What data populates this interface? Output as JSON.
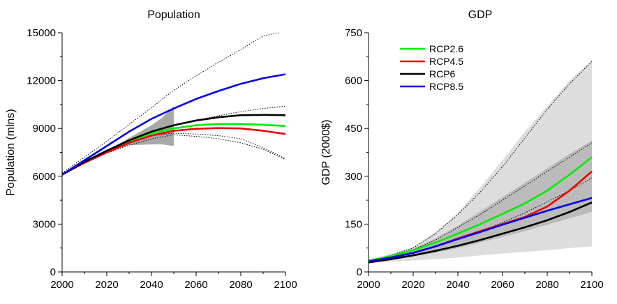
{
  "chart_data": [
    {
      "type": "line",
      "title": "Population",
      "xlabel": "",
      "ylabel": "Population (mlns)",
      "xlim": [
        2000,
        2100
      ],
      "ylim": [
        0,
        15000
      ],
      "xticks": [
        "2000",
        "2020",
        "2040",
        "2060",
        "2080",
        "2100"
      ],
      "yticks": [
        "0",
        "3000",
        "6000",
        "9000",
        "12000",
        "15000"
      ],
      "grid": false,
      "legend": null,
      "series": [
        {
          "name": "RCP2.6",
          "color": "#00ee00",
          "x": [
            2000,
            2010,
            2020,
            2030,
            2040,
            2050,
            2060,
            2070,
            2080,
            2090,
            2100
          ],
          "y": [
            6100,
            6900,
            7600,
            8200,
            8700,
            9000,
            9200,
            9280,
            9280,
            9230,
            9150
          ]
        },
        {
          "name": "RCP4.5",
          "color": "#ee0000",
          "x": [
            2000,
            2010,
            2020,
            2030,
            2040,
            2050,
            2060,
            2070,
            2080,
            2090,
            2100
          ],
          "y": [
            6100,
            6850,
            7500,
            8100,
            8550,
            8850,
            8980,
            9020,
            9000,
            8850,
            8650
          ]
        },
        {
          "name": "RCP6",
          "color": "#000000",
          "x": [
            2000,
            2010,
            2020,
            2030,
            2040,
            2050,
            2060,
            2070,
            2080,
            2090,
            2100
          ],
          "y": [
            6100,
            6900,
            7600,
            8250,
            8800,
            9200,
            9500,
            9700,
            9830,
            9850,
            9830
          ]
        },
        {
          "name": "RCP8.5",
          "color": "#0000ee",
          "x": [
            2000,
            2010,
            2020,
            2030,
            2040,
            2050,
            2060,
            2070,
            2080,
            2090,
            2100
          ],
          "y": [
            6100,
            7000,
            7900,
            8800,
            9600,
            10250,
            10850,
            11350,
            11800,
            12150,
            12400
          ]
        }
      ],
      "dotted": [
        {
          "x": [
            2000,
            2010,
            2020,
            2030,
            2040,
            2050,
            2060,
            2070,
            2080,
            2090,
            2097
          ],
          "y": [
            6200,
            7200,
            8200,
            9250,
            10300,
            11400,
            12300,
            13150,
            13950,
            14800,
            15000
          ]
        },
        {
          "x": [
            2000,
            2010,
            2020,
            2030,
            2040,
            2050,
            2060,
            2070,
            2080,
            2090,
            2100
          ],
          "y": [
            6100,
            6900,
            7600,
            8250,
            8800,
            9150,
            9500,
            9800,
            10050,
            10250,
            10400
          ]
        },
        {
          "x": [
            2000,
            2010,
            2020,
            2030,
            2040,
            2050,
            2060,
            2070,
            2080,
            2090,
            2100
          ],
          "y": [
            6100,
            6850,
            7550,
            8150,
            8550,
            8700,
            8650,
            8550,
            8350,
            7800,
            7100
          ]
        },
        {
          "x": [
            2000,
            2010,
            2020,
            2030,
            2040,
            2050,
            2060,
            2070,
            2080,
            2090,
            2100
          ],
          "y": [
            6100,
            6800,
            7450,
            7950,
            8350,
            8600,
            8500,
            8350,
            8100,
            7700,
            7050
          ]
        }
      ],
      "shaded": [
        {
          "color": "#a8a8a8",
          "x": [
            2020,
            2030,
            2040,
            2045,
            2050
          ],
          "upper": [
            7600,
            8400,
            9200,
            9700,
            10400
          ],
          "lower": [
            7500,
            7950,
            8000,
            8000,
            7900
          ]
        }
      ]
    },
    {
      "type": "line",
      "title": "GDP",
      "xlabel": "",
      "ylabel": "GDP (2000$)",
      "xlim": [
        2000,
        2100
      ],
      "ylim": [
        0,
        750
      ],
      "xticks": [
        "2000",
        "2020",
        "2040",
        "2060",
        "2080",
        "2100"
      ],
      "yticks": [
        "0",
        "150",
        "300",
        "450",
        "600",
        "750"
      ],
      "grid": false,
      "legend": "top-left",
      "series": [
        {
          "name": "RCP2.6",
          "color": "#00ee00",
          "x": [
            2000,
            2010,
            2020,
            2030,
            2040,
            2050,
            2060,
            2070,
            2080,
            2090,
            2100
          ],
          "y": [
            35,
            50,
            68,
            92,
            120,
            150,
            182,
            215,
            255,
            305,
            360
          ]
        },
        {
          "name": "RCP4.5",
          "color": "#ee0000",
          "x": [
            2000,
            2010,
            2020,
            2030,
            2040,
            2050,
            2060,
            2070,
            2080,
            2090,
            2100
          ],
          "y": [
            33,
            45,
            60,
            80,
            105,
            128,
            150,
            172,
            205,
            255,
            315
          ]
        },
        {
          "name": "RCP6",
          "color": "#000000",
          "x": [
            2000,
            2010,
            2020,
            2030,
            2040,
            2050,
            2060,
            2070,
            2080,
            2090,
            2100
          ],
          "y": [
            30,
            40,
            52,
            66,
            82,
            100,
            120,
            140,
            162,
            188,
            218
          ]
        },
        {
          "name": "RCP8.5",
          "color": "#0000ee",
          "x": [
            2000,
            2010,
            2020,
            2030,
            2040,
            2050,
            2060,
            2070,
            2080,
            2090,
            2100
          ],
          "y": [
            33,
            45,
            60,
            80,
            103,
            125,
            148,
            170,
            192,
            212,
            232
          ]
        }
      ],
      "dotted": [
        {
          "x": [
            2000,
            2010,
            2020,
            2030,
            2040,
            2050,
            2060,
            2070,
            2080,
            2090,
            2100
          ],
          "y": [
            35,
            52,
            75,
            120,
            180,
            250,
            330,
            420,
            510,
            590,
            660
          ]
        },
        {
          "x": [
            2000,
            2010,
            2020,
            2030,
            2040,
            2050,
            2060,
            2070,
            2080,
            2090,
            2100
          ],
          "y": [
            35,
            50,
            70,
            100,
            140,
            180,
            225,
            270,
            315,
            360,
            405
          ]
        },
        {
          "x": [
            2000,
            2010,
            2020,
            2030,
            2040,
            2050,
            2060,
            2070,
            2080,
            2090,
            2100
          ],
          "y": [
            33,
            45,
            60,
            80,
            103,
            128,
            155,
            185,
            220,
            255,
            295
          ]
        }
      ],
      "shaded": [
        {
          "color": "#dddddd",
          "x": [
            2000,
            2010,
            2020,
            2030,
            2040,
            2050,
            2060,
            2070,
            2080,
            2090,
            2100
          ],
          "upper": [
            40,
            55,
            78,
            125,
            185,
            265,
            350,
            440,
            520,
            600,
            665
          ],
          "lower": [
            28,
            32,
            36,
            40,
            45,
            52,
            58,
            63,
            68,
            75,
            80
          ]
        },
        {
          "color": "#bbbbbb",
          "x": [
            2000,
            2010,
            2020,
            2030,
            2040,
            2050,
            2060,
            2070,
            2080,
            2090,
            2100
          ],
          "upper": [
            36,
            50,
            72,
            105,
            145,
            190,
            235,
            280,
            325,
            370,
            412
          ],
          "lower": [
            30,
            38,
            48,
            60,
            75,
            92,
            110,
            128,
            148,
            168,
            188
          ]
        }
      ]
    }
  ]
}
